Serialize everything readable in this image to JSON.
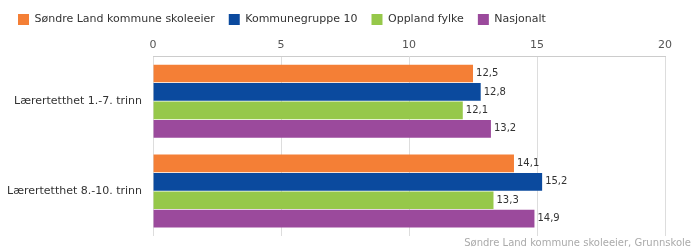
{
  "chart_data": {
    "type": "bar",
    "orientation": "horizontal",
    "categories": [
      "Lærertetthet 1.-7. trinn",
      "Lærertetthet 8.-10. trinn"
    ],
    "series": [
      {
        "name": "Søndre Land kommune skoleeier",
        "color": "#f47f36",
        "values": [
          12.5,
          14.1
        ],
        "value_labels": [
          "12,5",
          "14,1"
        ]
      },
      {
        "name": "Kommunegruppe 10",
        "color": "#0b4a9e",
        "values": [
          12.8,
          15.2
        ],
        "value_labels": [
          "12,8",
          "15,2"
        ]
      },
      {
        "name": "Oppland fylke",
        "color": "#96c84a",
        "values": [
          12.1,
          13.3
        ],
        "value_labels": [
          "12,1",
          "13,3"
        ]
      },
      {
        "name": "Nasjonalt",
        "color": "#9b4a9c",
        "values": [
          13.2,
          14.9
        ],
        "value_labels": [
          "13,2",
          "14,9"
        ]
      }
    ],
    "xlim": [
      0,
      20
    ],
    "xticks": [
      0,
      5,
      10,
      15,
      20
    ],
    "grid": true,
    "legend": "top",
    "data_labels": true,
    "annotations": [
      "Søndre Land kommune skoleeier, Grunnskole"
    ]
  }
}
